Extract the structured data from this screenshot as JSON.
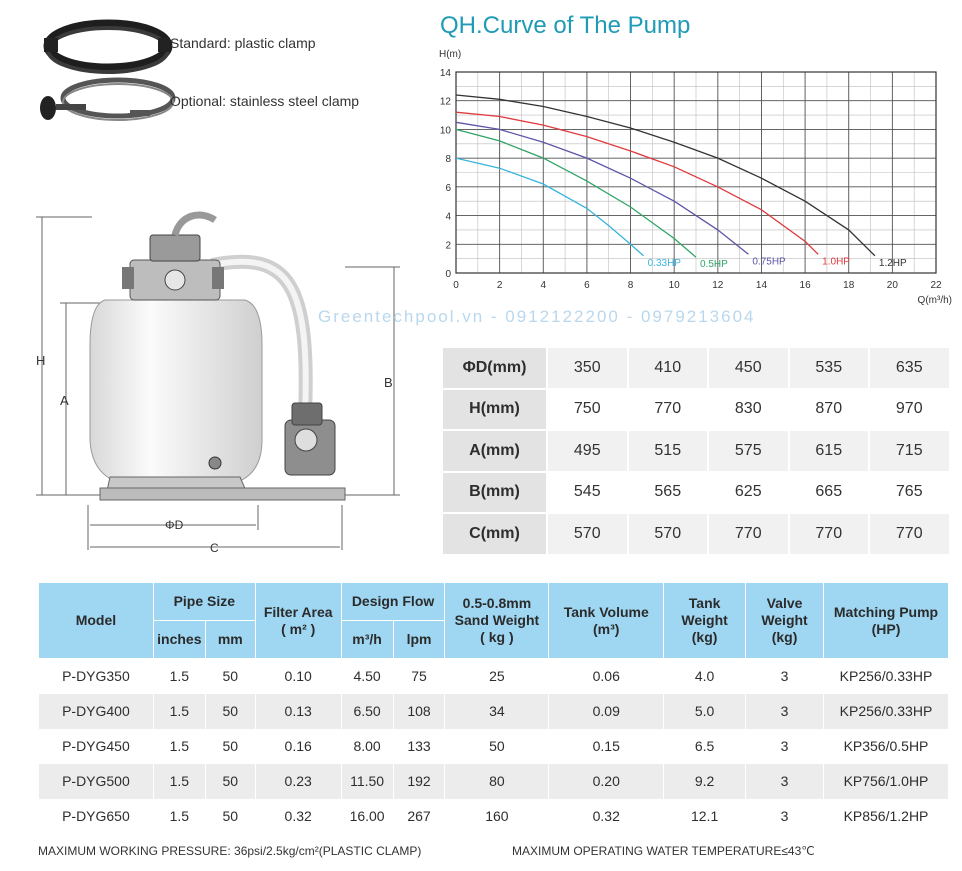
{
  "clamps": {
    "standard": "Standard: plastic clamp",
    "optional": "Optional: stainless steel clamp"
  },
  "drawing": {
    "labels": {
      "h": "H",
      "a": "A",
      "b": "B",
      "d": "ΦD",
      "c": "C"
    }
  },
  "watermark": "Greentechpool.vn - 0912122200 - 0979213604",
  "chart_data": {
    "type": "line",
    "title": "QH.Curve of The Pump",
    "ylabel": "H(m)",
    "xlabel": "Q(m³/h)",
    "xlim": [
      0,
      22
    ],
    "ylim": [
      0,
      14
    ],
    "xticks": [
      0,
      2,
      4,
      6,
      8,
      10,
      12,
      14,
      16,
      18,
      20,
      22
    ],
    "yticks": [
      0,
      2,
      4,
      6,
      8,
      10,
      12,
      14
    ],
    "grid": true,
    "series": [
      {
        "name": "0.33HP",
        "color": "#38b4dc",
        "x": [
          0,
          2,
          4,
          6,
          7,
          8,
          8.6
        ],
        "y": [
          8,
          7.3,
          6.2,
          4.5,
          3.3,
          2.0,
          1.2
        ]
      },
      {
        "name": "0.5HP",
        "color": "#2fa565",
        "x": [
          0,
          2,
          4,
          6,
          8,
          10,
          11
        ],
        "y": [
          10,
          9.2,
          8.0,
          6.4,
          4.6,
          2.4,
          1.1
        ]
      },
      {
        "name": "0.75HP",
        "color": "#5c55a8",
        "x": [
          0,
          2,
          4,
          6,
          8,
          10,
          12,
          13.4
        ],
        "y": [
          10.5,
          10.0,
          9.1,
          8.0,
          6.6,
          5.0,
          3.0,
          1.3
        ]
      },
      {
        "name": "1.0HP",
        "color": "#e03a3e",
        "x": [
          0,
          2,
          4,
          6,
          8,
          10,
          12,
          14,
          16,
          16.6
        ],
        "y": [
          11.2,
          10.9,
          10.3,
          9.5,
          8.5,
          7.4,
          6.0,
          4.4,
          2.2,
          1.3
        ]
      },
      {
        "name": "1.2HP",
        "color": "#333333",
        "x": [
          0,
          2,
          4,
          6,
          8,
          10,
          12,
          14,
          16,
          18,
          19.2
        ],
        "y": [
          12.4,
          12.1,
          11.6,
          10.9,
          10.1,
          9.1,
          8.0,
          6.6,
          5.0,
          3.0,
          1.2
        ]
      }
    ]
  },
  "dimension_table": {
    "rows": [
      {
        "label": "ΦD(mm)",
        "values": [
          "350",
          "410",
          "450",
          "535",
          "635"
        ]
      },
      {
        "label": "H(mm)",
        "values": [
          "750",
          "770",
          "830",
          "870",
          "970"
        ]
      },
      {
        "label": "A(mm)",
        "values": [
          "495",
          "515",
          "575",
          "615",
          "715"
        ]
      },
      {
        "label": "B(mm)",
        "values": [
          "545",
          "565",
          "625",
          "665",
          "765"
        ]
      },
      {
        "label": "C(mm)",
        "values": [
          "570",
          "570",
          "770",
          "770",
          "770"
        ]
      }
    ]
  },
  "spec_table": {
    "headers": {
      "model": "Model",
      "pipe_size": "Pipe Size",
      "inches": "inches",
      "mm": "mm",
      "filter_area": "Filter Area",
      "filter_area_unit": "( m² )",
      "design_flow": "Design Flow",
      "m3h": "m³/h",
      "lpm": "lpm",
      "sand_weight_1": "0.5-0.8mm",
      "sand_weight_2": "Sand Weight",
      "sand_weight_3": "( kg )",
      "tank_volume": "Tank Volume",
      "tank_volume_unit": "(m³)",
      "tank_weight_1": "Tank",
      "tank_weight_2": "Weight",
      "tank_weight_3": "(kg)",
      "valve_weight_1": "Valve",
      "valve_weight_2": "Weight",
      "valve_weight_3": "(kg)",
      "matching_pump_1": "Matching Pump",
      "matching_pump_2": "(HP)"
    },
    "rows": [
      [
        "P-DYG350",
        "1.5",
        "50",
        "0.10",
        "4.50",
        "75",
        "25",
        "0.06",
        "4.0",
        "3",
        "KP256/0.33HP"
      ],
      [
        "P-DYG400",
        "1.5",
        "50",
        "0.13",
        "6.50",
        "108",
        "34",
        "0.09",
        "5.0",
        "3",
        "KP256/0.33HP"
      ],
      [
        "P-DYG450",
        "1.5",
        "50",
        "0.16",
        "8.00",
        "133",
        "50",
        "0.15",
        "6.5",
        "3",
        "KP356/0.5HP"
      ],
      [
        "P-DYG500",
        "1.5",
        "50",
        "0.23",
        "11.50",
        "192",
        "80",
        "0.20",
        "9.2",
        "3",
        "KP756/1.0HP"
      ],
      [
        "P-DYG650",
        "1.5",
        "50",
        "0.32",
        "16.00",
        "267",
        "160",
        "0.32",
        "12.1",
        "3",
        "KP856/1.2HP"
      ]
    ]
  },
  "footer": {
    "pressure": "MAXIMUM WORKING PRESSURE: 36psi/2.5kg/cm²(PLASTIC CLAMP)",
    "temperature": "MAXIMUM OPERATING WATER TEMPERATURE≤43℃"
  }
}
